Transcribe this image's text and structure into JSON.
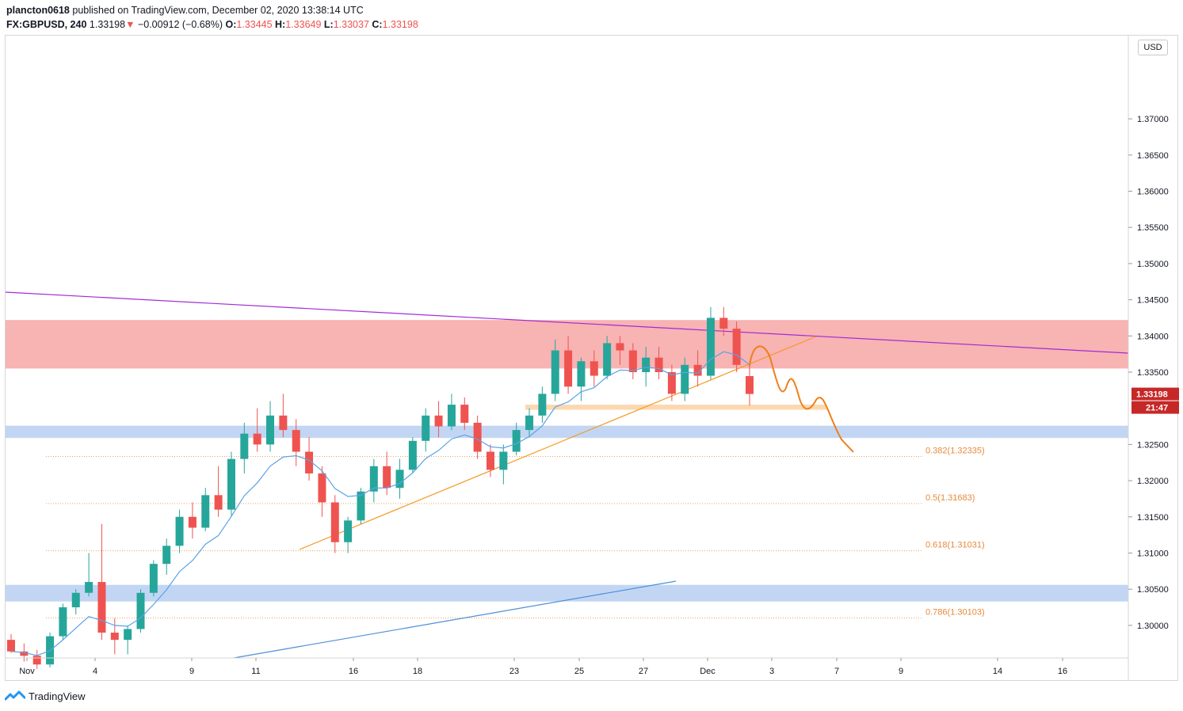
{
  "header": {
    "publisher": "plancton0618",
    "published_text": "published on TradingView.com, December 02, 2020 13:38:14 UTC",
    "symbol": "FX:GBPUSD, 240",
    "last": "1.33198",
    "change_arrow": "▼",
    "change": "−0.00912 (−0.68%)",
    "o_label": "O:",
    "o_value": "1.33445",
    "h_label": "H:",
    "h_value": "1.33649",
    "l_label": "L:",
    "l_value": "1.33037",
    "c_label": "C:",
    "c_value": "1.33198"
  },
  "price_axis": {
    "currency_button": "USD",
    "current_price_label": "1.33198",
    "countdown_label": "21:47"
  },
  "footer": {
    "brand": "TradingView",
    "logo_icon": "tradingview-logo-icon"
  },
  "colors": {
    "up": "#26a69a",
    "down": "#ef5350",
    "resistance_zone": "#f8b3b3",
    "support_zone": "#c2d6f4",
    "ema": "#5aa3e6",
    "trendline_purple": "#a22bd6",
    "trendline_orange": "#f59a23",
    "projection": "#ef7f1a",
    "fib": "#f0a35a"
  },
  "chart_data": {
    "type": "candlestick",
    "title": "",
    "ylim": [
      1.2955,
      1.3815
    ],
    "y_ticks": [
      "1.30000",
      "1.30500",
      "1.31000",
      "1.31500",
      "1.32000",
      "1.32500",
      "1.33500",
      "1.34000",
      "1.34500",
      "1.35000",
      "1.35500",
      "1.36000",
      "1.36500",
      "1.37000"
    ],
    "x_ticks": [
      "Nov",
      "4",
      "9",
      "11",
      "16",
      "18",
      "23",
      "25",
      "27",
      "Dec",
      "3",
      "7",
      "9",
      "14",
      "16"
    ],
    "ohlc_sample_4h": [
      [
        1.298,
        1.2988,
        1.2962,
        1.2964
      ],
      [
        1.2964,
        1.2975,
        1.295,
        1.2958
      ],
      [
        1.2958,
        1.2966,
        1.294,
        1.2946
      ],
      [
        1.2946,
        1.299,
        1.2942,
        1.2985
      ],
      [
        1.2985,
        1.303,
        1.298,
        1.3025
      ],
      [
        1.3025,
        1.305,
        1.3015,
        1.3045
      ],
      [
        1.3045,
        1.31,
        1.304,
        1.306
      ],
      [
        1.306,
        1.314,
        1.298,
        1.299
      ],
      [
        1.299,
        1.301,
        1.296,
        1.298
      ],
      [
        1.298,
        1.3,
        1.296,
        1.2995
      ],
      [
        1.2995,
        1.305,
        1.299,
        1.3045
      ],
      [
        1.3045,
        1.309,
        1.304,
        1.3085
      ],
      [
        1.3085,
        1.312,
        1.307,
        1.311
      ],
      [
        1.311,
        1.316,
        1.31,
        1.315
      ],
      [
        1.315,
        1.317,
        1.312,
        1.3135
      ],
      [
        1.3135,
        1.319,
        1.313,
        1.318
      ],
      [
        1.318,
        1.322,
        1.315,
        1.316
      ],
      [
        1.316,
        1.324,
        1.315,
        1.323
      ],
      [
        1.323,
        1.328,
        1.321,
        1.3265
      ],
      [
        1.3265,
        1.33,
        1.324,
        1.325
      ],
      [
        1.325,
        1.331,
        1.324,
        1.329
      ],
      [
        1.329,
        1.332,
        1.326,
        1.327
      ],
      [
        1.327,
        1.3285,
        1.322,
        1.324
      ],
      [
        1.324,
        1.326,
        1.32,
        1.321
      ],
      [
        1.321,
        1.322,
        1.315,
        1.317
      ],
      [
        1.317,
        1.318,
        1.31,
        1.3115
      ],
      [
        1.3115,
        1.315,
        1.31,
        1.3145
      ],
      [
        1.3145,
        1.319,
        1.314,
        1.3185
      ],
      [
        1.3185,
        1.323,
        1.317,
        1.322
      ],
      [
        1.322,
        1.324,
        1.318,
        1.319
      ],
      [
        1.319,
        1.323,
        1.3175,
        1.3215
      ],
      [
        1.3215,
        1.326,
        1.321,
        1.3255
      ],
      [
        1.3255,
        1.33,
        1.324,
        1.329
      ],
      [
        1.329,
        1.331,
        1.326,
        1.3275
      ],
      [
        1.3275,
        1.332,
        1.327,
        1.3305
      ],
      [
        1.3305,
        1.3315,
        1.327,
        1.328
      ],
      [
        1.328,
        1.329,
        1.323,
        1.324
      ],
      [
        1.324,
        1.325,
        1.3205,
        1.3215
      ],
      [
        1.3215,
        1.325,
        1.3195,
        1.324
      ],
      [
        1.324,
        1.328,
        1.3235,
        1.327
      ],
      [
        1.327,
        1.33,
        1.326,
        1.329
      ],
      [
        1.329,
        1.333,
        1.328,
        1.332
      ],
      [
        1.332,
        1.3395,
        1.331,
        1.338
      ],
      [
        1.338,
        1.34,
        1.332,
        1.333
      ],
      [
        1.333,
        1.337,
        1.331,
        1.3365
      ],
      [
        1.3365,
        1.338,
        1.333,
        1.3345
      ],
      [
        1.3345,
        1.34,
        1.334,
        1.339
      ],
      [
        1.339,
        1.34,
        1.336,
        1.338
      ],
      [
        1.338,
        1.339,
        1.334,
        1.335
      ],
      [
        1.335,
        1.3385,
        1.333,
        1.337
      ],
      [
        1.337,
        1.3385,
        1.334,
        1.335
      ],
      [
        1.335,
        1.336,
        1.331,
        1.332
      ],
      [
        1.332,
        1.337,
        1.331,
        1.336
      ],
      [
        1.336,
        1.338,
        1.333,
        1.3345
      ],
      [
        1.3345,
        1.344,
        1.334,
        1.3425
      ],
      [
        1.3425,
        1.344,
        1.34,
        1.341
      ],
      [
        1.341,
        1.342,
        1.335,
        1.336
      ],
      [
        1.33445,
        1.33649,
        1.33037,
        1.33198
      ]
    ],
    "zones": [
      {
        "name": "",
        "from": 1.3355,
        "to": 1.3422
      },
      {
        "name": "",
        "from": 1.3259,
        "to": 1.3276
      },
      {
        "name": "",
        "from": 1.3033,
        "to": 1.3056
      },
      {
        "name": "",
        "from": 1.3298,
        "to": 1.3305
      }
    ],
    "fib_levels": [
      {
        "label": "0.382(1.32335)",
        "value": 1.32335
      },
      {
        "label": "0.5(1.31683)",
        "value": 1.31683
      },
      {
        "label": "0.618(1.31031)",
        "value": 1.31031
      },
      {
        "label": "0.786(1.30103)",
        "value": 1.30103
      }
    ],
    "grid": false,
    "legend": "none"
  }
}
